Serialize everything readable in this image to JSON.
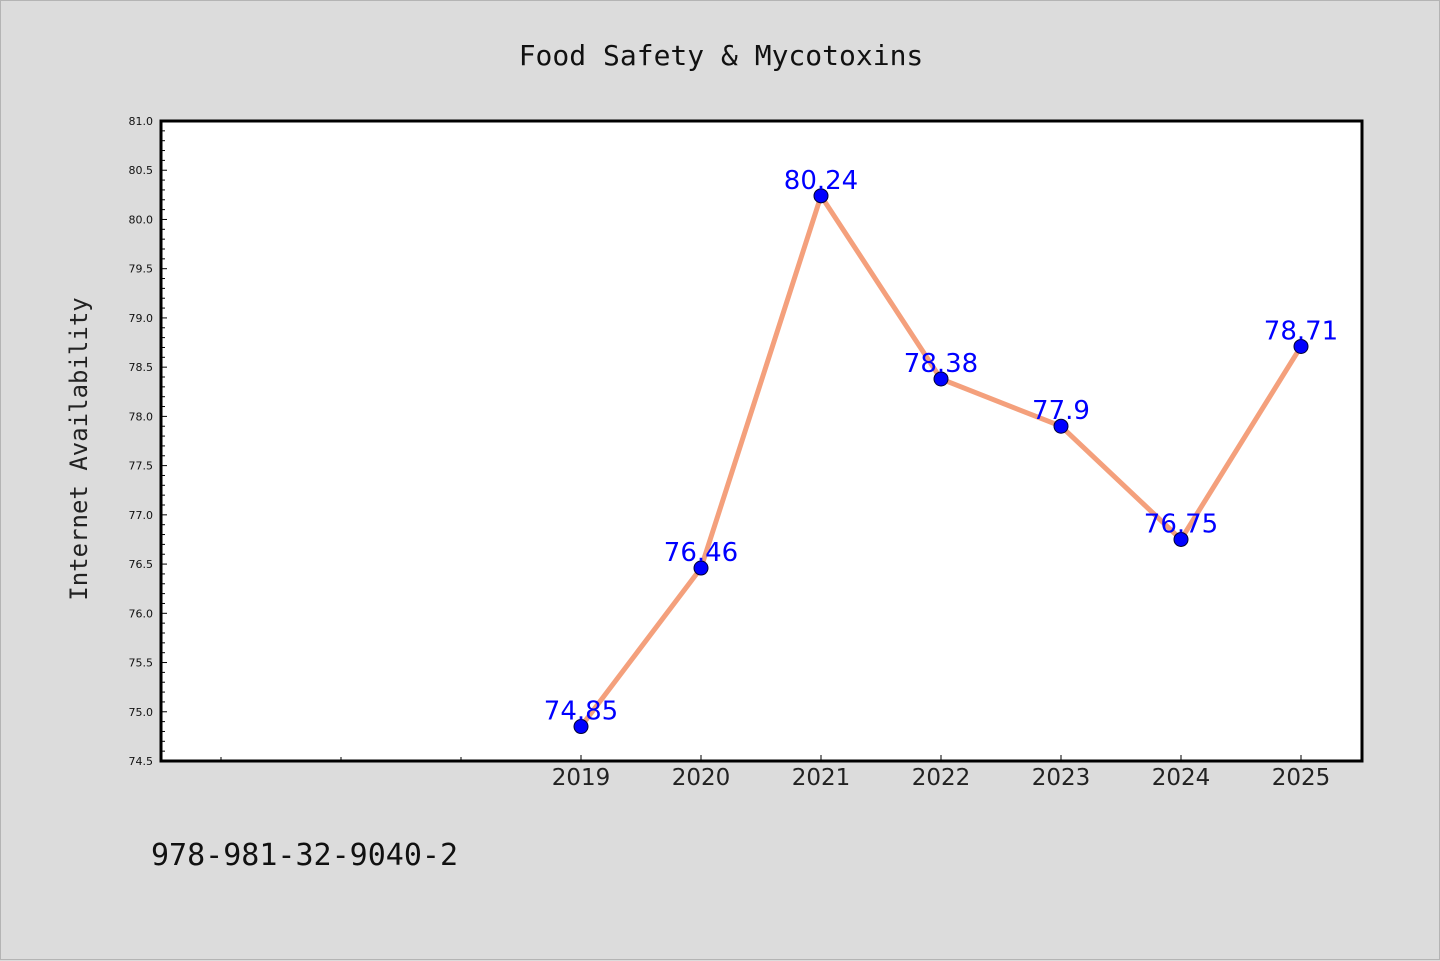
{
  "chart_data": {
    "type": "line",
    "title": "Food Safety & Mycotoxins",
    "ylabel": "Internet Availability",
    "xlabel": "",
    "categories": [
      "2019",
      "2020",
      "2021",
      "2022",
      "2023",
      "2024",
      "2025"
    ],
    "series": [
      {
        "values": [
          74.85,
          76.46,
          80.24,
          78.38,
          77.9,
          76.75,
          78.71
        ],
        "data_labels": [
          "74.85",
          "76.46",
          "80.24",
          "78.38",
          "77.9",
          "76.75",
          "78.71"
        ],
        "line_color": "#f4a07c",
        "marker_color": "#0000ff",
        "label_color": "#0000ff"
      }
    ],
    "ylim": [
      74.5,
      81.0
    ],
    "yticks": [
      "74.5",
      "75.0",
      "75.5",
      "76.0",
      "76.5",
      "77.0",
      "77.5",
      "78.0",
      "78.5",
      "79.0",
      "79.5",
      "80.0",
      "80.5",
      "81.0"
    ],
    "grid": false,
    "legend": "none"
  },
  "footnote": "978-981-32-9040-2",
  "colors": {
    "background": "#dcdcdc",
    "plot_background": "#ffffff",
    "axis": "#000000"
  }
}
